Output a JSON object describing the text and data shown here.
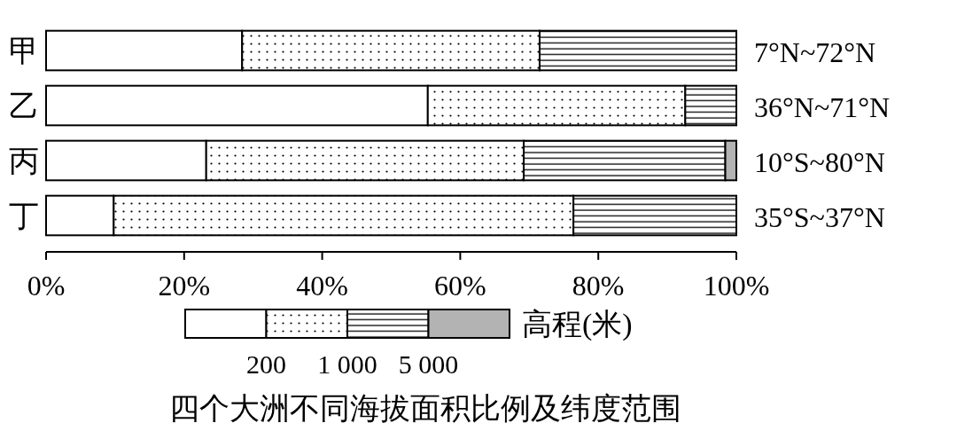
{
  "chart_data": {
    "type": "bar",
    "orientation": "horizontal",
    "stacked": true,
    "title": "四个大洲不同海拔面积比例及纬度范围",
    "categories": [
      "甲",
      "乙",
      "丙",
      "丁"
    ],
    "series": [
      {
        "color": "#ffffff",
        "values": [
          28.4,
          55.3,
          23.2,
          9.8
        ]
      },
      {
        "color": "#000000",
        "values": [
          43.1,
          37.3,
          46.0,
          66.6
        ]
      },
      {
        "color": "#000000",
        "values": [
          28.5,
          7.4,
          29.2,
          23.6
        ]
      },
      {
        "color": "#b3b3b3",
        "values": [
          null,
          null,
          1.6,
          null
        ]
      }
    ],
    "xlim": [
      0,
      100
    ],
    "xticks": [
      {
        "value": 0,
        "label": "0%"
      },
      {
        "value": 20,
        "label": "20%"
      },
      {
        "value": 40,
        "label": "40%"
      },
      {
        "value": 60,
        "label": "60%"
      },
      {
        "value": 80,
        "label": "80%"
      },
      {
        "value": 100,
        "label": "100%"
      }
    ],
    "legend_title": "高程(米)",
    "grid": false,
    "annotations": [
      "7°N~72°N",
      "36°N~71°N",
      "10°S~80°N",
      "35°S~37°N",
      "200",
      "1 000",
      "5 000"
    ]
  }
}
